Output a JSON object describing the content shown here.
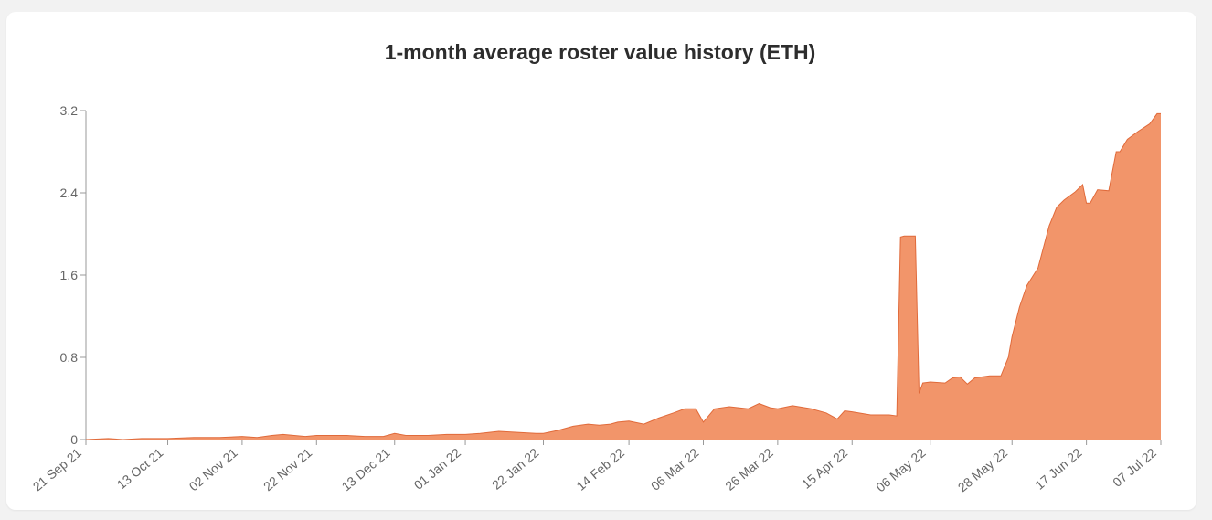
{
  "chart_data": {
    "type": "area",
    "title": "1-month average roster value history (ETH)",
    "xlabel": "",
    "ylabel": "",
    "ylim": [
      0,
      3.2
    ],
    "yticks": [
      "0",
      "0.8",
      "1.6",
      "2.4",
      "3.2"
    ],
    "ytick_values": [
      0,
      0.8,
      1.6,
      2.4,
      3.2
    ],
    "xlim": [
      "2021-09-21",
      "2022-07-07"
    ],
    "xticks": [
      "21 Sep 21",
      "13 Oct 21",
      "02 Nov 21",
      "22 Nov 21",
      "13 Dec 21",
      "01 Jan 22",
      "22 Jan 22",
      "14 Feb 22",
      "06 Mar 22",
      "26 Mar 22",
      "15 Apr 22",
      "06 May 22",
      "28 May 22",
      "17 Jun 22",
      "07 Jul 22"
    ],
    "xtick_dates": [
      "2021-09-21",
      "2021-10-13",
      "2021-11-02",
      "2021-11-22",
      "2021-12-13",
      "2022-01-01",
      "2022-01-22",
      "2022-02-14",
      "2022-03-06",
      "2022-03-26",
      "2022-04-15",
      "2022-05-06",
      "2022-05-28",
      "2022-06-17",
      "2022-07-07"
    ],
    "grid": false,
    "fill_color": "#f2956a",
    "line_color": "#e06a3a",
    "series": [
      {
        "x": [
          "2021-09-21",
          "2021-09-27",
          "2021-10-01",
          "2021-10-06",
          "2021-10-13",
          "2021-10-20",
          "2021-10-27",
          "2021-11-02",
          "2021-11-06",
          "2021-11-10",
          "2021-11-13",
          "2021-11-16",
          "2021-11-19",
          "2021-11-22",
          "2021-11-25",
          "2021-11-30",
          "2021-12-05",
          "2021-12-10",
          "2021-12-13",
          "2021-12-16",
          "2021-12-22",
          "2021-12-27",
          "2022-01-01",
          "2022-01-05",
          "2022-01-10",
          "2022-01-15",
          "2022-01-20",
          "2022-01-22",
          "2022-01-26",
          "2022-01-30",
          "2022-02-03",
          "2022-02-06",
          "2022-02-09",
          "2022-02-11",
          "2022-02-14",
          "2022-02-18",
          "2022-02-22",
          "2022-02-26",
          "2022-03-01",
          "2022-03-04",
          "2022-03-06",
          "2022-03-09",
          "2022-03-13",
          "2022-03-18",
          "2022-03-21",
          "2022-03-24",
          "2022-03-26",
          "2022-03-30",
          "2022-04-04",
          "2022-04-08",
          "2022-04-11",
          "2022-04-13",
          "2022-04-15",
          "2022-04-20",
          "2022-04-25",
          "2022-04-27",
          "2022-04-28",
          "2022-04-29",
          "2022-05-01",
          "2022-05-02",
          "2022-05-03",
          "2022-05-04",
          "2022-05-06",
          "2022-05-10",
          "2022-05-12",
          "2022-05-14",
          "2022-05-16",
          "2022-05-18",
          "2022-05-22",
          "2022-05-25",
          "2022-05-27",
          "2022-05-28",
          "2022-05-30",
          "2022-06-01",
          "2022-06-04",
          "2022-06-07",
          "2022-06-09",
          "2022-06-11",
          "2022-06-14",
          "2022-06-16",
          "2022-06-17",
          "2022-06-18",
          "2022-06-20",
          "2022-06-23",
          "2022-06-25",
          "2022-06-26",
          "2022-06-28",
          "2022-07-01",
          "2022-07-04",
          "2022-07-06",
          "2022-07-07"
        ],
        "y": [
          0.0,
          0.01,
          0.0,
          0.01,
          0.01,
          0.02,
          0.02,
          0.03,
          0.02,
          0.04,
          0.05,
          0.04,
          0.03,
          0.04,
          0.04,
          0.04,
          0.03,
          0.03,
          0.06,
          0.04,
          0.04,
          0.05,
          0.05,
          0.06,
          0.08,
          0.07,
          0.06,
          0.06,
          0.09,
          0.13,
          0.15,
          0.14,
          0.15,
          0.17,
          0.18,
          0.15,
          0.21,
          0.26,
          0.3,
          0.3,
          0.17,
          0.3,
          0.32,
          0.3,
          0.35,
          0.31,
          0.3,
          0.33,
          0.3,
          0.26,
          0.2,
          0.28,
          0.27,
          0.24,
          0.24,
          0.23,
          1.97,
          1.98,
          1.98,
          1.98,
          0.45,
          0.55,
          0.56,
          0.55,
          0.6,
          0.61,
          0.54,
          0.6,
          0.62,
          0.62,
          0.8,
          1.0,
          1.29,
          1.5,
          1.67,
          2.08,
          2.26,
          2.33,
          2.41,
          2.48,
          2.3,
          2.3,
          2.43,
          2.42,
          2.8,
          2.8,
          2.92,
          3.0,
          3.07,
          3.17,
          3.17
        ]
      }
    ]
  }
}
